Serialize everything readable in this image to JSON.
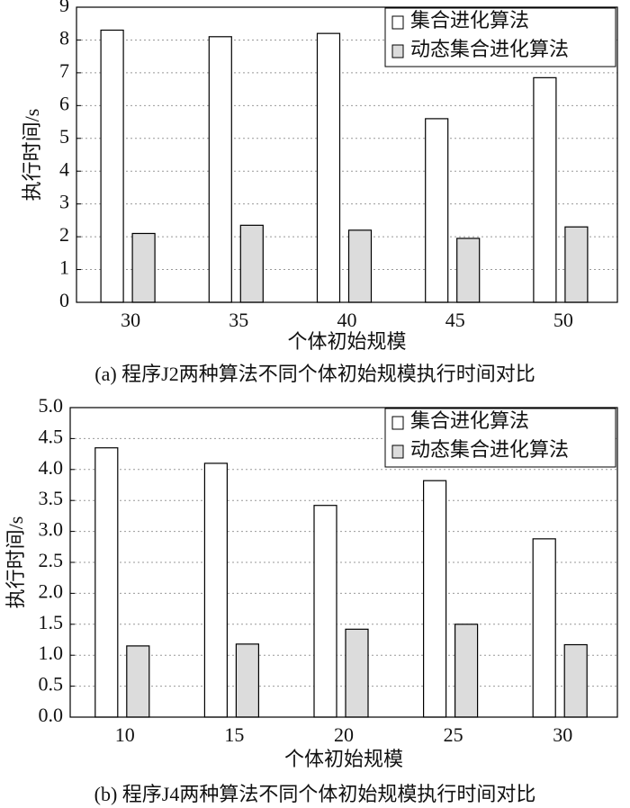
{
  "chart_data": [
    {
      "type": "bar",
      "title": "(a) 程序J2两种算法不同个体初始规模执行时间对比",
      "x_label": "个体初始规模",
      "y_label": "执行时间/s",
      "categories": [
        "30",
        "35",
        "40",
        "45",
        "50"
      ],
      "series": [
        {
          "name": "集合进化算法",
          "color": "#ffffff",
          "values": [
            8.3,
            8.1,
            8.2,
            5.6,
            6.85
          ]
        },
        {
          "name": "动态集合进化算法",
          "color": "#dcdcdc",
          "values": [
            2.1,
            2.35,
            2.2,
            1.95,
            2.3
          ]
        }
      ],
      "ylim": [
        0,
        9
      ],
      "yticks": [
        0,
        1,
        2,
        3,
        4,
        5,
        6,
        7,
        8,
        9
      ],
      "grid": true,
      "legend": "upper right"
    },
    {
      "type": "bar",
      "title": "(b) 程序J4两种算法不同个体初始规模执行时间对比",
      "x_label": "个体初始规模",
      "y_label": "执行时间/s",
      "categories": [
        "10",
        "15",
        "20",
        "25",
        "30"
      ],
      "series": [
        {
          "name": "集合进化算法",
          "color": "#ffffff",
          "values": [
            4.35,
            4.1,
            3.42,
            3.82,
            2.88
          ]
        },
        {
          "name": "动态集合进化算法",
          "color": "#dcdcdc",
          "values": [
            1.15,
            1.18,
            1.42,
            1.5,
            1.17
          ]
        }
      ],
      "ylim": [
        0,
        5
      ],
      "yticks": [
        {
          "value": 0,
          "label": "0.0"
        },
        0.5,
        {
          "value": 1,
          "label": "1.0"
        },
        1.5,
        {
          "value": 2,
          "label": "2.0"
        },
        2.5,
        {
          "value": 3,
          "label": "3.0"
        },
        3.5,
        {
          "value": 4,
          "label": "4.0"
        },
        4.5,
        {
          "value": 5,
          "label": "5.0"
        }
      ],
      "grid": true,
      "legend": "upper right"
    }
  ]
}
